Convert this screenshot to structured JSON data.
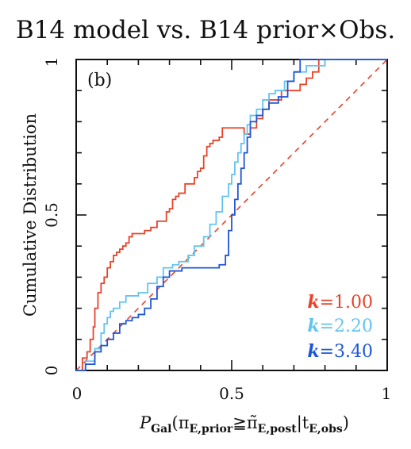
{
  "chart_data": {
    "type": "line",
    "title": "B14 model vs. B14 prior×Obs.",
    "panel_label": "(b)",
    "ylabel": "Cumulative Distribution",
    "xlabel": {
      "main": "P",
      "main_sub": "Gal",
      "open": "(π",
      "pi_sub": "E,prior",
      "relation": "≧",
      "pi_tilde": "π̃",
      "pi_tilde_sub": "E,post",
      "given": "|t",
      "t_sub": "E,obs",
      "close": ")"
    },
    "xlim": [
      0,
      1
    ],
    "ylim": [
      0,
      1
    ],
    "xticks": [
      0,
      0.5,
      1
    ],
    "yticks": [
      0,
      0.5,
      1
    ],
    "xtick_labels": [
      "0",
      "0.5",
      "1"
    ],
    "ytick_labels": [
      "0",
      "0.5",
      "1"
    ],
    "grid": false,
    "legend_position": "bottom-right",
    "reference_line": {
      "x": [
        0,
        1
      ],
      "y": [
        0,
        1
      ],
      "color": "#e8432a",
      "style": "dashed"
    },
    "series": [
      {
        "name": "k=1.00",
        "legend_k": "k",
        "legend_value": "=1.00",
        "color": "#e8432a",
        "x": [
          0,
          0.02,
          0.035,
          0.045,
          0.055,
          0.06,
          0.07,
          0.08,
          0.09,
          0.1,
          0.11,
          0.12,
          0.13,
          0.14,
          0.15,
          0.16,
          0.17,
          0.18,
          0.2,
          0.22,
          0.24,
          0.26,
          0.28,
          0.29,
          0.3,
          0.31,
          0.32,
          0.33,
          0.35,
          0.37,
          0.38,
          0.39,
          0.4,
          0.41,
          0.42,
          0.43,
          0.44,
          0.46,
          0.47,
          0.49,
          0.53,
          0.54,
          0.56,
          0.58,
          0.6,
          0.62,
          0.66,
          0.72,
          0.74,
          0.76,
          0.78,
          1
        ],
        "y": [
          0,
          0.04,
          0.06,
          0.1,
          0.14,
          0.2,
          0.25,
          0.28,
          0.3,
          0.33,
          0.35,
          0.37,
          0.38,
          0.39,
          0.4,
          0.41,
          0.43,
          0.44,
          0.44,
          0.45,
          0.46,
          0.48,
          0.48,
          0.51,
          0.52,
          0.55,
          0.56,
          0.57,
          0.6,
          0.6,
          0.62,
          0.64,
          0.65,
          0.69,
          0.72,
          0.73,
          0.74,
          0.75,
          0.78,
          0.78,
          0.78,
          0.76,
          0.78,
          0.81,
          0.84,
          0.87,
          0.9,
          0.92,
          0.94,
          0.96,
          1,
          1
        ]
      },
      {
        "name": "k=2.20",
        "legend_k": "k",
        "legend_value": "=2.20",
        "color": "#62c4f0",
        "x": [
          0,
          0.03,
          0.06,
          0.08,
          0.09,
          0.1,
          0.11,
          0.12,
          0.14,
          0.16,
          0.2,
          0.23,
          0.26,
          0.28,
          0.31,
          0.33,
          0.36,
          0.38,
          0.41,
          0.43,
          0.45,
          0.47,
          0.49,
          0.5,
          0.51,
          0.52,
          0.53,
          0.54,
          0.55,
          0.56,
          0.58,
          0.6,
          0.62,
          0.64,
          0.67,
          0.7,
          0.74,
          0.8,
          1
        ],
        "y": [
          0,
          0.03,
          0.07,
          0.12,
          0.15,
          0.17,
          0.19,
          0.2,
          0.22,
          0.24,
          0.25,
          0.28,
          0.3,
          0.33,
          0.34,
          0.35,
          0.37,
          0.4,
          0.43,
          0.47,
          0.51,
          0.56,
          0.6,
          0.63,
          0.67,
          0.7,
          0.73,
          0.76,
          0.79,
          0.82,
          0.84,
          0.87,
          0.89,
          0.9,
          0.93,
          0.96,
          0.98,
          1,
          1
        ]
      },
      {
        "name": "k=3.40",
        "legend_k": "k",
        "legend_value": "=3.40",
        "color": "#1e56d8",
        "x": [
          0,
          0.03,
          0.06,
          0.08,
          0.1,
          0.12,
          0.14,
          0.16,
          0.18,
          0.2,
          0.22,
          0.24,
          0.26,
          0.28,
          0.3,
          0.32,
          0.34,
          0.36,
          0.38,
          0.4,
          0.42,
          0.44,
          0.46,
          0.48,
          0.49,
          0.5,
          0.51,
          0.52,
          0.53,
          0.54,
          0.55,
          0.56,
          0.58,
          0.6,
          0.62,
          0.65,
          0.68,
          0.7,
          0.72,
          0.75,
          1
        ],
        "y": [
          0,
          0.02,
          0.06,
          0.08,
          0.1,
          0.12,
          0.15,
          0.16,
          0.17,
          0.18,
          0.2,
          0.23,
          0.27,
          0.3,
          0.32,
          0.32,
          0.33,
          0.33,
          0.33,
          0.33,
          0.33,
          0.33,
          0.34,
          0.37,
          0.45,
          0.5,
          0.55,
          0.6,
          0.65,
          0.7,
          0.75,
          0.8,
          0.82,
          0.84,
          0.86,
          0.88,
          0.93,
          0.96,
          1,
          1,
          1
        ]
      }
    ]
  }
}
